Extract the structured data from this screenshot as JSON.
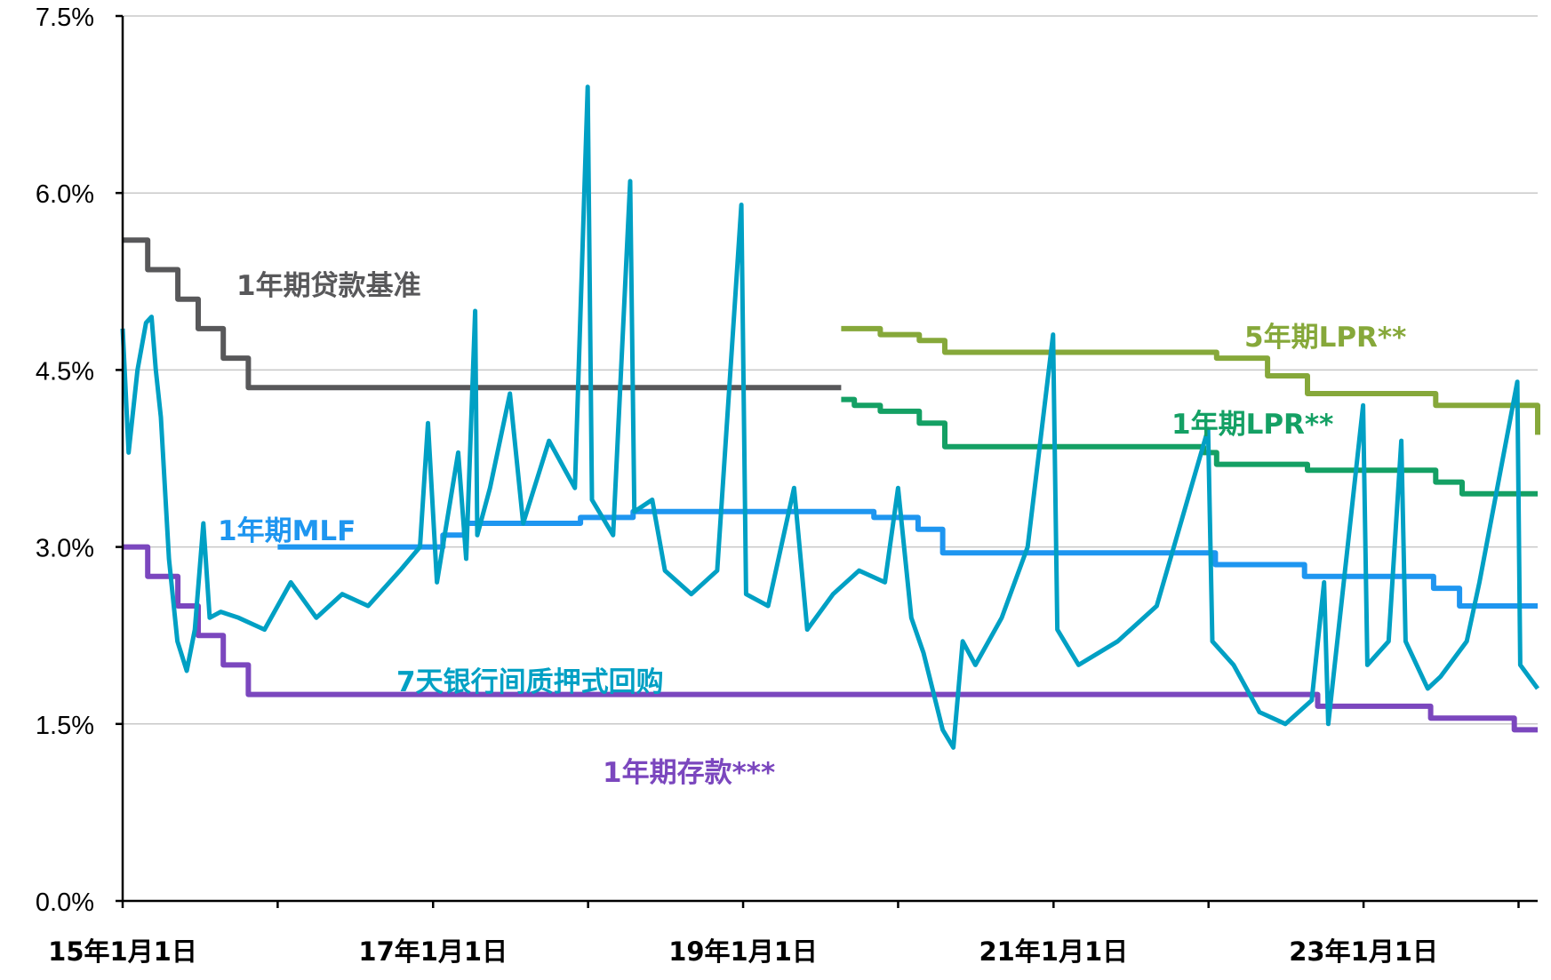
{
  "chart_data": {
    "type": "line",
    "title": "",
    "xlabel": "",
    "ylabel": "",
    "x_range": [
      "2015-01-01",
      "2024-02-15"
    ],
    "ylim": [
      0,
      7.5
    ],
    "y_ticks": [
      0,
      1.5,
      3.0,
      4.5,
      6.0,
      7.5
    ],
    "y_tick_labels": [
      "0.0%",
      "1.5%",
      "3.0%",
      "4.5%",
      "6.0%",
      "7.5%"
    ],
    "x_ticks": [
      "2015-01-01",
      "2016-01-01",
      "2017-01-01",
      "2018-01-01",
      "2019-01-01",
      "2020-01-01",
      "2021-01-01",
      "2022-01-01",
      "2023-01-01",
      "2024-01-01"
    ],
    "x_tick_labels": [
      "15年1月1日",
      "",
      "17年1月1日",
      "",
      "19年1月1日",
      "",
      "21年1月1日",
      "",
      "23年1月1日",
      ""
    ],
    "grid": "horizontal",
    "legend": "inline labels",
    "series": [
      {
        "name": "1年期贷款基准",
        "color": "#58585a",
        "step": true,
        "points": [
          [
            "2015-01-01",
            5.6
          ],
          [
            "2015-03-01",
            5.35
          ],
          [
            "2015-05-11",
            5.1
          ],
          [
            "2015-06-28",
            4.85
          ],
          [
            "2015-08-26",
            4.6
          ],
          [
            "2015-10-24",
            4.35
          ],
          [
            "2019-08-20",
            4.35
          ]
        ]
      },
      {
        "name": "1年期存款***",
        "color": "#7b47be",
        "step": true,
        "points": [
          [
            "2015-01-01",
            3.0
          ],
          [
            "2015-03-01",
            2.75
          ],
          [
            "2015-05-11",
            2.5
          ],
          [
            "2015-06-28",
            2.25
          ],
          [
            "2015-08-26",
            2.0
          ],
          [
            "2015-10-24",
            1.75
          ],
          [
            "2022-09-15",
            1.65
          ],
          [
            "2023-06-08",
            1.55
          ],
          [
            "2023-12-22",
            1.45
          ],
          [
            "2024-02-15",
            1.45
          ]
        ]
      },
      {
        "name": "1年期MLF",
        "color": "#1e96f0",
        "step": true,
        "points": [
          [
            "2016-01-01",
            3.0
          ],
          [
            "2017-01-24",
            3.1
          ],
          [
            "2017-03-16",
            3.2
          ],
          [
            "2017-12-14",
            3.25
          ],
          [
            "2018-04-17",
            3.3
          ],
          [
            "2019-11-05",
            3.25
          ],
          [
            "2020-02-17",
            3.15
          ],
          [
            "2020-04-15",
            2.95
          ],
          [
            "2022-01-17",
            2.85
          ],
          [
            "2022-08-15",
            2.75
          ],
          [
            "2023-06-15",
            2.65
          ],
          [
            "2023-08-15",
            2.5
          ],
          [
            "2024-02-15",
            2.5
          ]
        ]
      },
      {
        "name": "5年期LPR**",
        "color": "#86a83a",
        "step": true,
        "points": [
          [
            "2019-08-20",
            4.85
          ],
          [
            "2019-11-20",
            4.8
          ],
          [
            "2020-02-20",
            4.75
          ],
          [
            "2020-04-20",
            4.65
          ],
          [
            "2022-01-20",
            4.6
          ],
          [
            "2022-05-20",
            4.45
          ],
          [
            "2022-08-22",
            4.3
          ],
          [
            "2023-06-20",
            4.2
          ],
          [
            "2024-02-10",
            4.2
          ],
          [
            "2024-02-15",
            3.95
          ]
        ]
      },
      {
        "name": "1年期LPR**",
        "color": "#14a064",
        "step": true,
        "points": [
          [
            "2019-08-20",
            4.25
          ],
          [
            "2019-09-20",
            4.2
          ],
          [
            "2019-11-20",
            4.15
          ],
          [
            "2020-02-20",
            4.05
          ],
          [
            "2020-04-20",
            3.85
          ],
          [
            "2021-12-20",
            3.8
          ],
          [
            "2022-01-20",
            3.7
          ],
          [
            "2022-08-22",
            3.65
          ],
          [
            "2023-06-20",
            3.55
          ],
          [
            "2023-08-21",
            3.45
          ],
          [
            "2024-02-15",
            3.45
          ]
        ]
      },
      {
        "name": "7天银行间质押式回购",
        "color": "#00a0c4",
        "step": false,
        "points": [
          [
            "2015-01-01",
            4.85
          ],
          [
            "2015-01-15",
            3.8
          ],
          [
            "2015-02-05",
            4.5
          ],
          [
            "2015-02-25",
            4.9
          ],
          [
            "2015-03-10",
            4.95
          ],
          [
            "2015-03-20",
            4.5
          ],
          [
            "2015-04-01",
            4.1
          ],
          [
            "2015-04-20",
            2.9
          ],
          [
            "2015-05-10",
            2.2
          ],
          [
            "2015-06-01",
            1.95
          ],
          [
            "2015-06-20",
            2.3
          ],
          [
            "2015-07-10",
            3.2
          ],
          [
            "2015-07-25",
            2.4
          ],
          [
            "2015-08-20",
            2.45
          ],
          [
            "2015-10-01",
            2.4
          ],
          [
            "2015-12-01",
            2.3
          ],
          [
            "2016-02-01",
            2.7
          ],
          [
            "2016-04-01",
            2.4
          ],
          [
            "2016-06-01",
            2.6
          ],
          [
            "2016-08-01",
            2.5
          ],
          [
            "2016-10-15",
            2.8
          ],
          [
            "2016-12-01",
            3.0
          ],
          [
            "2016-12-20",
            4.05
          ],
          [
            "2017-01-10",
            2.7
          ],
          [
            "2017-03-01",
            3.8
          ],
          [
            "2017-03-20",
            2.9
          ],
          [
            "2017-04-10",
            5.0
          ],
          [
            "2017-04-15",
            3.1
          ],
          [
            "2017-05-15",
            3.5
          ],
          [
            "2017-07-01",
            4.3
          ],
          [
            "2017-08-01",
            3.2
          ],
          [
            "2017-10-01",
            3.9
          ],
          [
            "2017-12-01",
            3.5
          ],
          [
            "2017-12-31",
            6.9
          ],
          [
            "2018-01-10",
            3.4
          ],
          [
            "2018-03-01",
            3.1
          ],
          [
            "2018-04-10",
            6.1
          ],
          [
            "2018-04-20",
            3.3
          ],
          [
            "2018-06-01",
            3.4
          ],
          [
            "2018-07-01",
            2.8
          ],
          [
            "2018-09-01",
            2.6
          ],
          [
            "2018-11-01",
            2.8
          ],
          [
            "2018-12-28",
            5.9
          ],
          [
            "2019-01-08",
            2.6
          ],
          [
            "2019-03-01",
            2.5
          ],
          [
            "2019-05-01",
            3.5
          ],
          [
            "2019-06-01",
            2.3
          ],
          [
            "2019-08-01",
            2.6
          ],
          [
            "2019-10-01",
            2.8
          ],
          [
            "2019-12-01",
            2.7
          ],
          [
            "2020-01-01",
            3.5
          ],
          [
            "2020-02-01",
            2.4
          ],
          [
            "2020-03-01",
            2.1
          ],
          [
            "2020-04-15",
            1.45
          ],
          [
            "2020-05-10",
            1.3
          ],
          [
            "2020-06-01",
            2.2
          ],
          [
            "2020-07-01",
            2.0
          ],
          [
            "2020-09-01",
            2.4
          ],
          [
            "2020-11-01",
            3.0
          ],
          [
            "2020-12-31",
            4.8
          ],
          [
            "2021-01-10",
            2.3
          ],
          [
            "2021-03-01",
            2.0
          ],
          [
            "2021-06-01",
            2.2
          ],
          [
            "2021-09-01",
            2.5
          ],
          [
            "2021-12-31",
            4.0
          ],
          [
            "2022-01-10",
            2.2
          ],
          [
            "2022-03-01",
            2.0
          ],
          [
            "2022-05-01",
            1.6
          ],
          [
            "2022-07-01",
            1.5
          ],
          [
            "2022-09-01",
            1.7
          ],
          [
            "2022-09-30",
            2.7
          ],
          [
            "2022-10-10",
            1.5
          ],
          [
            "2022-12-31",
            4.2
          ],
          [
            "2023-01-10",
            2.0
          ],
          [
            "2023-03-01",
            2.2
          ],
          [
            "2023-03-31",
            3.9
          ],
          [
            "2023-04-10",
            2.2
          ],
          [
            "2023-06-01",
            1.8
          ],
          [
            "2023-07-01",
            1.9
          ],
          [
            "2023-09-01",
            2.2
          ],
          [
            "2023-10-01",
            2.7
          ],
          [
            "2023-12-29",
            4.4
          ],
          [
            "2024-01-05",
            2.0
          ],
          [
            "2024-02-15",
            1.8
          ]
        ]
      }
    ],
    "annotations": [
      "1年期贷款基准",
      "5年期LPR**",
      "1年期LPR**",
      "1年期MLF",
      "7天银行间质押式回购",
      "1年期存款***"
    ]
  }
}
